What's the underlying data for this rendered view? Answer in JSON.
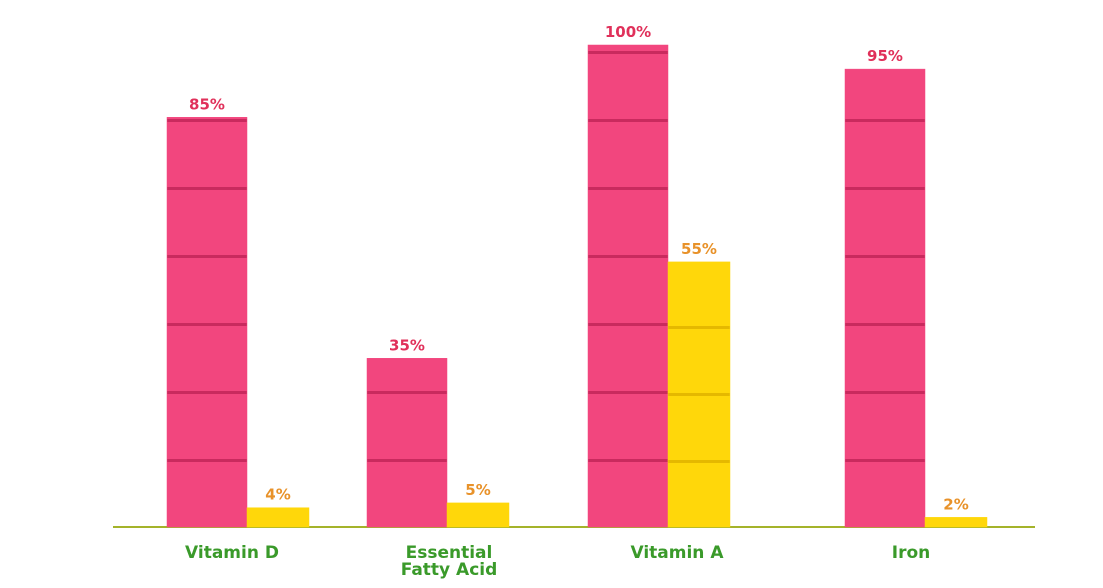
{
  "chart_data": {
    "type": "bar",
    "categories": [
      "Vitamin D",
      "Essential Fatty Acid",
      "Vitamin A",
      "Iron"
    ],
    "series": [
      {
        "color": "#f2467e",
        "values": [
          85,
          35,
          100,
          95
        ],
        "value_labels": [
          "85%",
          "35%",
          "100%",
          "95%"
        ],
        "label_color": "#e0305a"
      },
      {
        "color": "#ffd70a",
        "values": [
          4,
          5,
          55,
          2
        ],
        "value_labels": [
          "4%",
          "5%",
          "55%",
          "2%"
        ],
        "label_color": "#e8922a"
      }
    ],
    "baseline_color": "#a4b32a",
    "category_color": "#3a9a2a"
  }
}
